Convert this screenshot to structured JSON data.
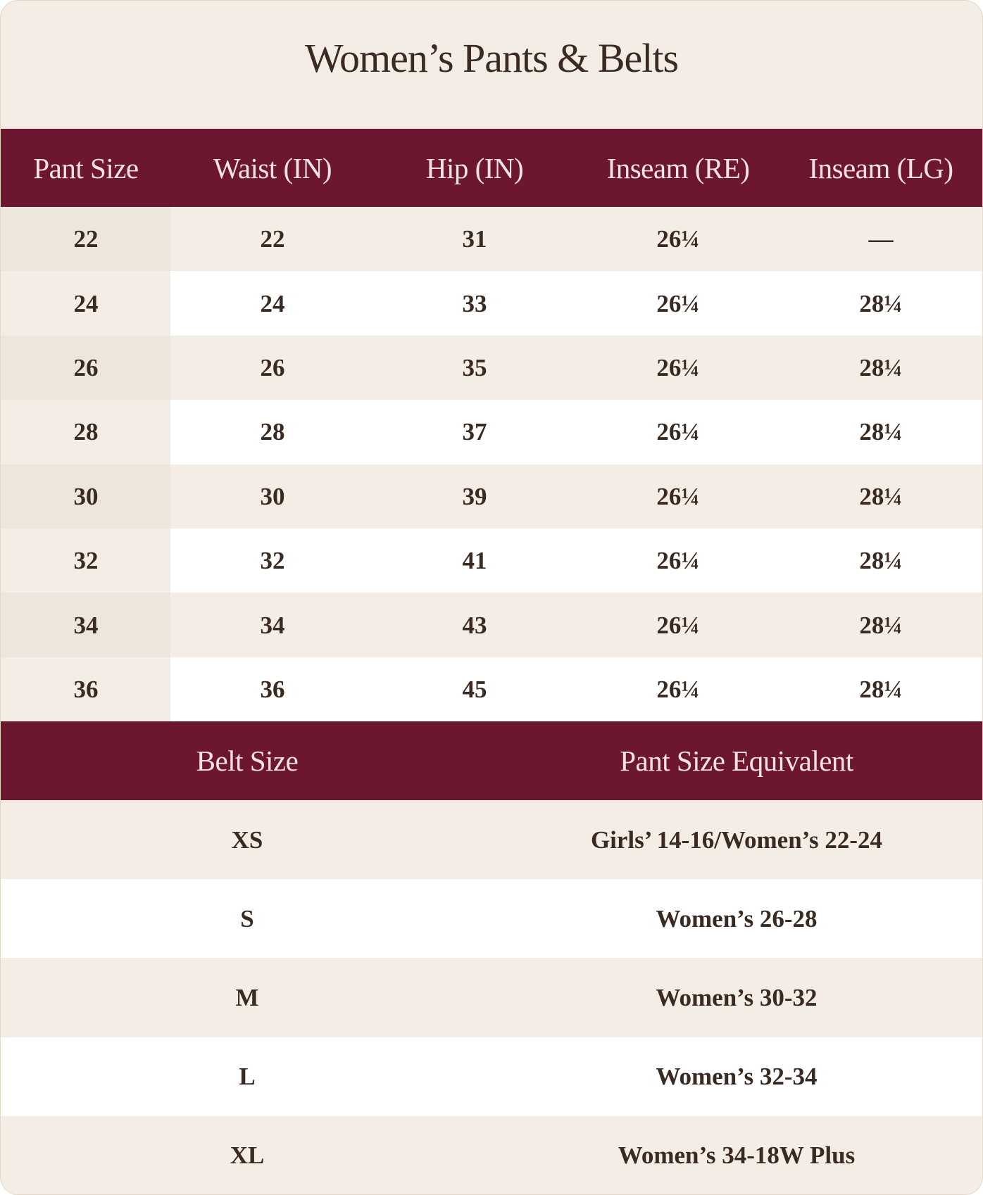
{
  "title": "Women’s Pants & Belts",
  "pants_table": {
    "headers": [
      "Pant Size",
      "Waist (IN)",
      "Hip (IN)",
      "Inseam (RE)",
      "Inseam (LG)"
    ],
    "rows": [
      [
        "22",
        "22",
        "31",
        "26¼",
        "—"
      ],
      [
        "24",
        "24",
        "33",
        "26¼",
        "28¼"
      ],
      [
        "26",
        "26",
        "35",
        "26¼",
        "28¼"
      ],
      [
        "28",
        "28",
        "37",
        "26¼",
        "28¼"
      ],
      [
        "30",
        "30",
        "39",
        "26¼",
        "28¼"
      ],
      [
        "32",
        "32",
        "41",
        "26¼",
        "28¼"
      ],
      [
        "34",
        "34",
        "43",
        "26¼",
        "28¼"
      ],
      [
        "36",
        "36",
        "45",
        "26¼",
        "28¼"
      ]
    ]
  },
  "belts_table": {
    "headers": [
      "Belt Size",
      "Pant Size Equivalent"
    ],
    "rows": [
      [
        "XS",
        "Girls’ 14-16/Women’s 22-24"
      ],
      [
        "S",
        "Women’s 26-28"
      ],
      [
        "M",
        "Women’s 30-32"
      ],
      [
        "L",
        "Women’s 32-34"
      ],
      [
        "XL",
        "Women’s 34-18W Plus"
      ]
    ]
  },
  "colors": {
    "header_bg": "#6d1630",
    "header_text": "#f7e3e3",
    "text": "#3a2a22",
    "background": "#f4ede6"
  }
}
